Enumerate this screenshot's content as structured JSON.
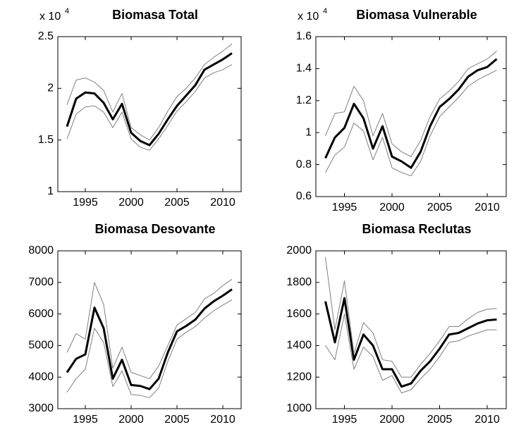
{
  "chart_data": [
    {
      "type": "line",
      "title": "Biomasa Total",
      "y_multiplier": "x 10",
      "y_multiplier_exponent": "4",
      "x": [
        1993,
        1994,
        1995,
        1996,
        1997,
        1998,
        1999,
        2000,
        2001,
        2002,
        2003,
        2004,
        2005,
        2006,
        2007,
        2008,
        2009,
        2010,
        2011
      ],
      "xlim": [
        1992,
        2012
      ],
      "xticks": [
        1995,
        2000,
        2005,
        2010
      ],
      "ylim": [
        1,
        2.5
      ],
      "yticks": [
        1,
        1.5,
        2,
        2.5
      ],
      "series": [
        {
          "color": "#000000",
          "values": [
            1.63,
            1.9,
            1.96,
            1.95,
            1.86,
            1.7,
            1.85,
            1.57,
            1.49,
            1.45,
            1.56,
            1.7,
            1.83,
            1.93,
            2.03,
            2.18,
            2.23,
            2.28,
            2.34
          ]
        },
        {
          "color": "#808080",
          "values": [
            1.84,
            2.08,
            2.1,
            2.06,
            1.98,
            1.77,
            1.95,
            1.62,
            1.55,
            1.5,
            1.62,
            1.78,
            1.92,
            2.0,
            2.1,
            2.23,
            2.3,
            2.36,
            2.43
          ]
        },
        {
          "color": "#808080",
          "values": [
            1.51,
            1.75,
            1.82,
            1.83,
            1.77,
            1.62,
            1.77,
            1.51,
            1.43,
            1.4,
            1.51,
            1.64,
            1.78,
            1.87,
            1.97,
            2.1,
            2.15,
            2.18,
            2.23
          ]
        }
      ]
    },
    {
      "type": "line",
      "title": "Biomasa Vulnerable",
      "y_multiplier": "x 10",
      "y_multiplier_exponent": "4",
      "x": [
        1993,
        1994,
        1995,
        1996,
        1997,
        1998,
        1999,
        2000,
        2001,
        2002,
        2003,
        2004,
        2005,
        2006,
        2007,
        2008,
        2009,
        2010,
        2011
      ],
      "xlim": [
        1992,
        2012
      ],
      "xticks": [
        1995,
        2000,
        2005,
        2010
      ],
      "ylim": [
        0.6,
        1.6
      ],
      "yticks": [
        0.6,
        0.8,
        1,
        1.2,
        1.4,
        1.6
      ],
      "series": [
        {
          "color": "#000000",
          "values": [
            0.84,
            0.97,
            1.03,
            1.18,
            1.09,
            0.9,
            1.04,
            0.85,
            0.82,
            0.78,
            0.88,
            1.04,
            1.16,
            1.21,
            1.27,
            1.35,
            1.39,
            1.41,
            1.46
          ]
        },
        {
          "color": "#808080",
          "values": [
            0.98,
            1.12,
            1.13,
            1.29,
            1.2,
            0.98,
            1.12,
            0.93,
            0.88,
            0.85,
            0.95,
            1.1,
            1.21,
            1.26,
            1.32,
            1.4,
            1.43,
            1.46,
            1.51
          ]
        },
        {
          "color": "#808080",
          "values": [
            0.75,
            0.86,
            0.91,
            1.06,
            1.01,
            0.83,
            0.97,
            0.78,
            0.75,
            0.73,
            0.82,
            0.98,
            1.1,
            1.16,
            1.22,
            1.29,
            1.33,
            1.36,
            1.39
          ]
        }
      ]
    },
    {
      "type": "line",
      "title": "Biomasa Desovante",
      "x": [
        1993,
        1994,
        1995,
        1996,
        1997,
        1998,
        1999,
        2000,
        2001,
        2002,
        2003,
        2004,
        2005,
        2006,
        2007,
        2008,
        2009,
        2010,
        2011
      ],
      "xlim": [
        1992,
        2012
      ],
      "xticks": [
        1995,
        2000,
        2005,
        2010
      ],
      "ylim": [
        3000,
        8000
      ],
      "yticks": [
        3000,
        4000,
        5000,
        6000,
        7000,
        8000
      ],
      "series": [
        {
          "color": "#000000",
          "values": [
            4150,
            4580,
            4720,
            6200,
            5550,
            3950,
            4550,
            3750,
            3720,
            3620,
            3950,
            4780,
            5450,
            5620,
            5820,
            6170,
            6400,
            6580,
            6780
          ]
        },
        {
          "color": "#808080",
          "values": [
            4780,
            5380,
            5200,
            7000,
            6300,
            4280,
            4950,
            4150,
            4050,
            3950,
            4350,
            5000,
            5650,
            5850,
            6050,
            6480,
            6650,
            6900,
            7100
          ]
        },
        {
          "color": "#808080",
          "values": [
            3520,
            3950,
            4250,
            5550,
            5100,
            3700,
            4200,
            3450,
            3420,
            3350,
            3650,
            4500,
            5200,
            5420,
            5600,
            5870,
            6100,
            6280,
            6450
          ]
        }
      ]
    },
    {
      "type": "line",
      "title": "Biomasa Reclutas",
      "x": [
        1993,
        1994,
        1995,
        1996,
        1997,
        1998,
        1999,
        2000,
        2001,
        2002,
        2003,
        2004,
        2005,
        2006,
        2007,
        2008,
        2009,
        2010,
        2011
      ],
      "xlim": [
        1992,
        2012
      ],
      "xticks": [
        1995,
        2000,
        2005,
        2010
      ],
      "ylim": [
        1000,
        2000
      ],
      "yticks": [
        1000,
        1200,
        1400,
        1600,
        1800,
        2000
      ],
      "series": [
        {
          "color": "#000000",
          "values": [
            1680,
            1420,
            1700,
            1310,
            1470,
            1400,
            1250,
            1250,
            1140,
            1160,
            1240,
            1300,
            1380,
            1470,
            1480,
            1510,
            1540,
            1560,
            1565
          ]
        },
        {
          "color": "#808080",
          "values": [
            1960,
            1500,
            1810,
            1350,
            1545,
            1480,
            1310,
            1300,
            1200,
            1200,
            1280,
            1350,
            1430,
            1520,
            1520,
            1570,
            1610,
            1630,
            1635
          ]
        },
        {
          "color": "#808080",
          "values": [
            1400,
            1310,
            1600,
            1250,
            1390,
            1330,
            1180,
            1210,
            1100,
            1120,
            1190,
            1250,
            1330,
            1420,
            1430,
            1460,
            1480,
            1500,
            1500
          ]
        }
      ]
    }
  ]
}
